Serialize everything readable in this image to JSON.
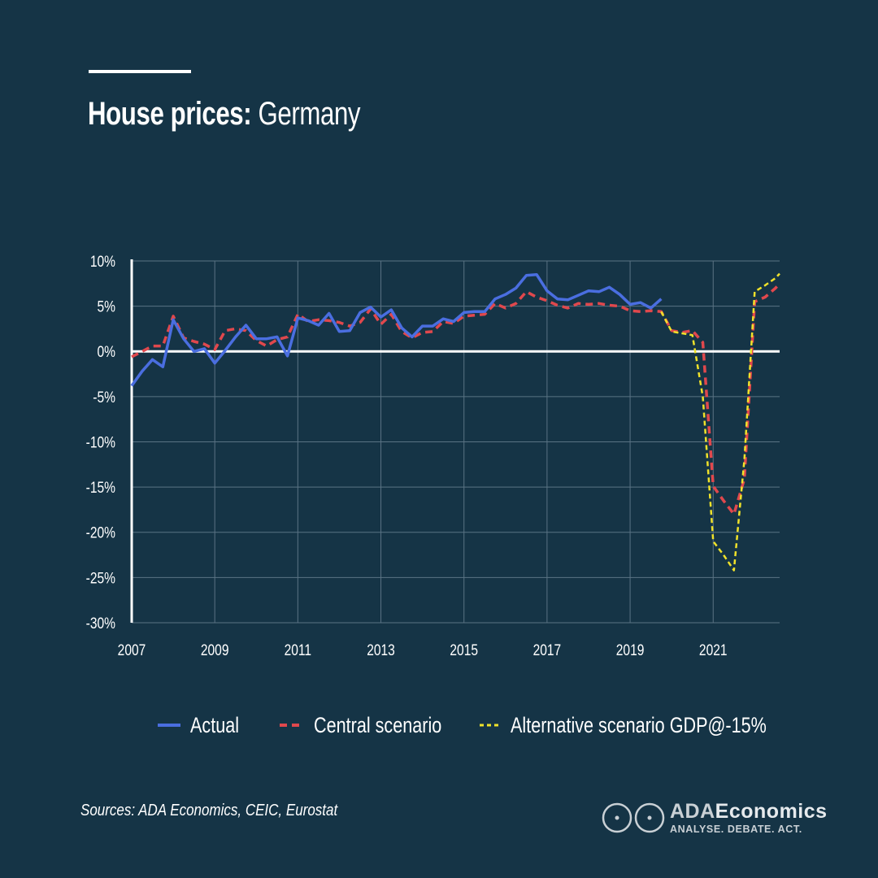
{
  "header": {
    "title_bold": "House prices:",
    "title_light": "Germany"
  },
  "chart_data": {
    "type": "line",
    "title": "House prices: Germany",
    "y_tick_labels": [
      "10%",
      "5%",
      "0%",
      "-5%",
      "-10%",
      "-15%",
      "-20%",
      "-25%",
      "-30%"
    ],
    "x_tick_labels": [
      "2007",
      "2009",
      "2011",
      "2013",
      "2015",
      "2017",
      "2019",
      "2021"
    ],
    "ylim": [
      -30,
      10
    ],
    "xlim": [
      2007.0,
      2022.6
    ],
    "grid": true,
    "legend_position": "bottom",
    "series": [
      {
        "name": "Actual",
        "color": "#4a6ee0",
        "style": "solid",
        "x": [
          2007.0,
          2007.25,
          2007.5,
          2007.75,
          2008.0,
          2008.25,
          2008.5,
          2008.75,
          2009.0,
          2009.25,
          2009.5,
          2009.75,
          2010.0,
          2010.25,
          2010.5,
          2010.75,
          2011.0,
          2011.25,
          2011.5,
          2011.75,
          2012.0,
          2012.25,
          2012.5,
          2012.75,
          2013.0,
          2013.25,
          2013.5,
          2013.75,
          2014.0,
          2014.25,
          2014.5,
          2014.75,
          2015.0,
          2015.25,
          2015.5,
          2015.75,
          2016.0,
          2016.25,
          2016.5,
          2016.75,
          2017.0,
          2017.25,
          2017.5,
          2017.75,
          2018.0,
          2018.25,
          2018.5,
          2018.75,
          2019.0,
          2019.25,
          2019.5,
          2019.75
        ],
        "y": [
          -3.8,
          -2.2,
          -0.9,
          -1.7,
          3.5,
          1.4,
          0.0,
          0.3,
          -1.3,
          0.1,
          1.6,
          2.9,
          1.4,
          1.4,
          1.6,
          -0.5,
          3.7,
          3.4,
          2.9,
          4.2,
          2.2,
          2.3,
          4.3,
          4.9,
          3.8,
          4.6,
          2.6,
          1.6,
          2.8,
          2.8,
          3.6,
          3.3,
          4.3,
          4.4,
          4.4,
          5.8,
          6.3,
          7.0,
          8.4,
          8.5,
          6.7,
          5.8,
          5.7,
          6.2,
          6.7,
          6.6,
          7.1,
          6.3,
          5.2,
          5.4,
          4.8,
          5.8
        ]
      },
      {
        "name": "Central scenario",
        "color": "#e0484d",
        "style": "dashed",
        "x": [
          2007.0,
          2007.25,
          2007.5,
          2007.75,
          2008.0,
          2008.25,
          2008.5,
          2008.75,
          2009.0,
          2009.25,
          2009.5,
          2009.75,
          2010.0,
          2010.25,
          2010.5,
          2010.75,
          2011.0,
          2011.25,
          2011.5,
          2011.75,
          2012.0,
          2012.25,
          2012.5,
          2012.75,
          2013.0,
          2013.25,
          2013.5,
          2013.75,
          2014.0,
          2014.25,
          2014.5,
          2014.75,
          2015.0,
          2015.25,
          2015.5,
          2015.75,
          2016.0,
          2016.25,
          2016.5,
          2016.75,
          2017.0,
          2017.25,
          2017.5,
          2017.75,
          2018.0,
          2018.25,
          2018.5,
          2018.75,
          2019.0,
          2019.25,
          2019.5,
          2019.75,
          2020.0,
          2020.25,
          2020.5,
          2020.75,
          2021.0,
          2021.25,
          2021.5,
          2021.75,
          2022.0,
          2022.25,
          2022.5,
          2022.6
        ],
        "y": [
          -0.6,
          0.0,
          0.6,
          0.6,
          3.9,
          1.5,
          1.1,
          0.8,
          0.2,
          2.3,
          2.5,
          2.3,
          1.2,
          0.6,
          1.3,
          1.6,
          4.1,
          3.3,
          3.5,
          3.4,
          3.2,
          2.8,
          3.2,
          4.7,
          3.0,
          4.1,
          2.2,
          1.5,
          2.1,
          2.2,
          3.3,
          3.1,
          3.9,
          4.0,
          4.1,
          5.3,
          4.8,
          5.3,
          6.6,
          6.0,
          5.6,
          5.1,
          4.8,
          5.3,
          5.2,
          5.3,
          5.1,
          5.0,
          4.5,
          4.4,
          4.5,
          4.4,
          2.3,
          2.1,
          2.3,
          1.0,
          -14.9,
          -16.5,
          -18.0,
          -14.1,
          5.5,
          6.0,
          7.0,
          7.5
        ]
      },
      {
        "name": "Alternative scenario GDP@-15%",
        "color": "#f0e22a",
        "style": "dashed",
        "x": [
          2019.75,
          2020.0,
          2020.25,
          2020.5,
          2020.75,
          2021.0,
          2021.25,
          2021.5,
          2021.75,
          2022.0,
          2022.25,
          2022.5,
          2022.6
        ],
        "y": [
          4.4,
          2.2,
          2.0,
          1.8,
          -5.0,
          -21.0,
          -22.5,
          -24.2,
          -12.0,
          6.6,
          7.3,
          8.1,
          8.6
        ]
      }
    ]
  },
  "legend": {
    "items": [
      {
        "label": "Actual",
        "color": "#4a6ee0",
        "style": "solid"
      },
      {
        "label": "Central scenario",
        "color": "#e0484d",
        "style": "dashed"
      },
      {
        "label": "Alternative scenario GDP@-15%",
        "color": "#f0e22a",
        "style": "dashed"
      }
    ]
  },
  "footer": {
    "sources": "Sources: ADA Economics, CEIC, Eurostat"
  },
  "logo": {
    "name_part1": "ADA",
    "name_part2": "Economics",
    "tagline": "ANALYSE. DEBATE. ACT."
  }
}
